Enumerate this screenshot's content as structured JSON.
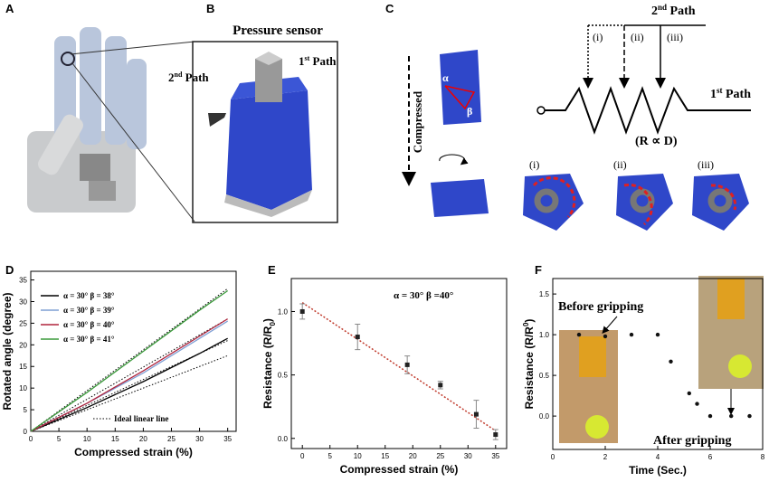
{
  "panel_labels": [
    "A",
    "B",
    "C",
    "D",
    "E",
    "F"
  ],
  "panel_b": {
    "title": "Pressure sensor",
    "path2": {
      "num": "2",
      "sup": "nd",
      "text": " Path"
    },
    "path1": {
      "num": "1",
      "sup": "st",
      "text": " Path"
    }
  },
  "panel_c": {
    "compressed": "Compressed",
    "alpha": "α",
    "beta": "β",
    "path2": {
      "num": "2",
      "sup": "nd",
      "text": " Path"
    },
    "path1": {
      "num": "1",
      "sup": "st",
      "text": " Path"
    },
    "branches": [
      "(i)",
      "(ii)",
      "(iii)"
    ],
    "relation": "(R ∝ D)",
    "states": [
      "(i)",
      "(ii)",
      "(iii)"
    ]
  },
  "chart_data": [
    {
      "type": "line",
      "xlabel": "Compressed strain (%)",
      "ylabel": "Rotated angle (degree)",
      "xlim": [
        0,
        36.5
      ],
      "ylim": [
        0,
        37
      ],
      "xticks": [
        0,
        5,
        10,
        15,
        20,
        25,
        30,
        35
      ],
      "yticks": [
        0,
        5,
        10,
        15,
        20,
        25,
        30,
        35
      ],
      "series": [
        {
          "name": "α = 30° β = 38°",
          "color": "#000000",
          "x": [
            0,
            10,
            20,
            30,
            35
          ],
          "values": [
            0,
            5.5,
            11.5,
            18,
            21.5
          ]
        },
        {
          "name": "α = 30° β = 39°",
          "color": "#7f9fd4",
          "x": [
            0,
            10,
            20,
            30,
            35
          ],
          "values": [
            0,
            6.5,
            13.5,
            21.5,
            25.5
          ]
        },
        {
          "name": "α = 30° β = 40°",
          "color": "#b0243c",
          "x": [
            0,
            10,
            20,
            30,
            35
          ],
          "values": [
            0,
            6.5,
            14,
            22,
            26
          ]
        },
        {
          "name": "α = 30° β = 41°",
          "color": "#3a9a3a",
          "x": [
            0,
            10,
            20,
            30,
            35
          ],
          "values": [
            0,
            9,
            18.5,
            28,
            32.5
          ]
        }
      ],
      "reference": {
        "name": "Ideal linear line",
        "color": "#000000",
        "x": [
          0,
          35
        ],
        "lines": [
          [
            0,
            17.5
          ],
          [
            0,
            21
          ],
          [
            0,
            26
          ],
          [
            0,
            33
          ]
        ]
      }
    },
    {
      "type": "scatter",
      "marker": "square",
      "xlabel": "Compressed strain (%)",
      "ylabel": {
        "text": "Resistance (R/R",
        "sub": "0",
        "end": ")"
      },
      "annotation": "α = 30° β =40°",
      "xlim": [
        -2,
        37
      ],
      "ylim": [
        -0.08,
        1.26
      ],
      "xticks": [
        0,
        5,
        10,
        15,
        20,
        25,
        30,
        35
      ],
      "yticks": [
        {
          "value": 0,
          "label": "0.0"
        },
        {
          "value": 0.5,
          "label": "0.5"
        },
        {
          "value": 1,
          "label": "1.0"
        }
      ],
      "x": [
        0,
        10,
        19,
        25,
        31.5,
        35
      ],
      "values": [
        1.0,
        0.8,
        0.58,
        0.42,
        0.19,
        0.03
      ],
      "errors": [
        0.06,
        0.1,
        0.07,
        0.03,
        0.11,
        0.04
      ],
      "color": "#222222",
      "fit": {
        "color": "#c0392b",
        "x": [
          0,
          35
        ],
        "values": [
          1.07,
          0.06
        ]
      }
    },
    {
      "type": "scatter",
      "marker": "circle",
      "xlabel": "Time (Sec.)",
      "ylabel": {
        "text": "Resistance (R/R",
        "sup": "0",
        "end": ")"
      },
      "annotations": [
        "Before gripping",
        "After gripping"
      ],
      "xlim": [
        0,
        8
      ],
      "ylim": [
        -0.41,
        1.69
      ],
      "xticks": [
        0,
        2,
        4,
        6,
        8
      ],
      "yticks": [
        {
          "value": 0,
          "label": "0.0"
        },
        {
          "value": 0.5,
          "label": "0.5"
        },
        {
          "value": 1,
          "label": "1.0"
        },
        {
          "value": 1.5,
          "label": "1.5"
        }
      ],
      "x": [
        1,
        2,
        3,
        4,
        4.5,
        5.2,
        5.5,
        6,
        6.8,
        7.5
      ],
      "values": [
        1,
        0.98,
        1,
        1,
        0.67,
        0.28,
        0.15,
        0,
        0,
        0
      ],
      "color": "#111111"
    }
  ]
}
